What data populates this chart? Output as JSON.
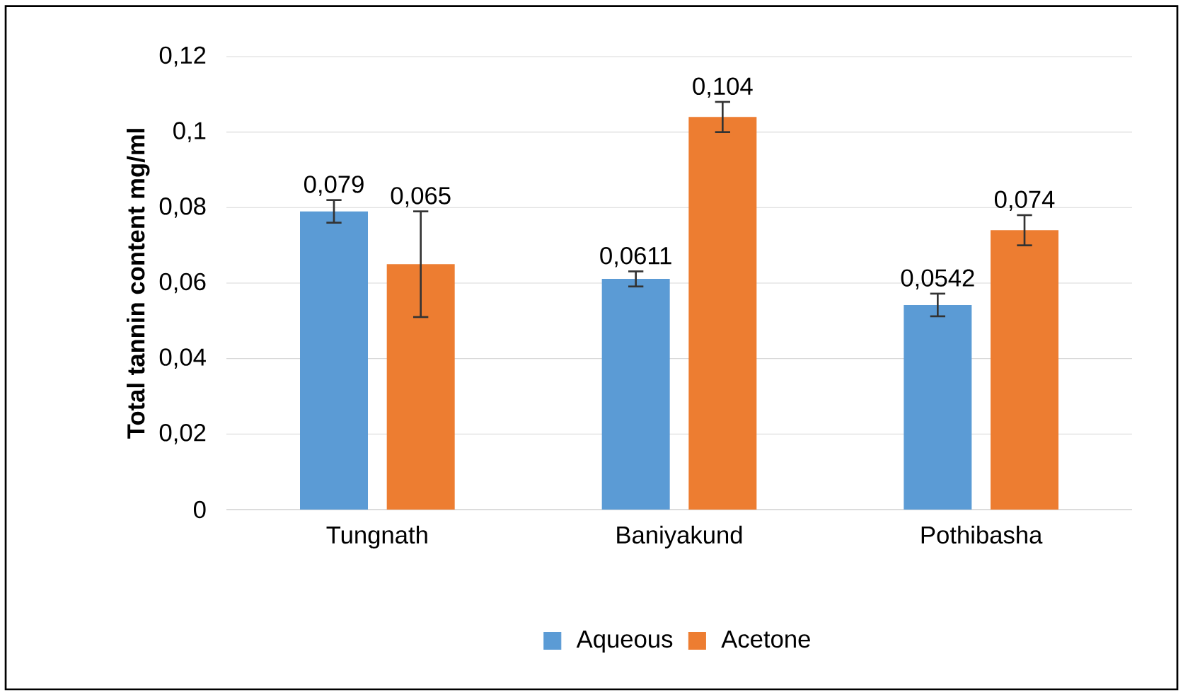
{
  "chart_data": {
    "type": "bar",
    "ylabel": "Total tannin content mg/ml",
    "categories": [
      "Tungnath",
      "Baniyakund",
      "Pothibasha"
    ],
    "series": [
      {
        "name": "Aqueous",
        "color": "#5b9bd5",
        "values": [
          0.079,
          0.0611,
          0.0542
        ],
        "errors": [
          0.003,
          0.002,
          0.003
        ],
        "value_labels": [
          "0,079",
          "0,0611",
          "0,0542"
        ]
      },
      {
        "name": "Acetone",
        "color": "#ed7d31",
        "values": [
          0.065,
          0.104,
          0.074
        ],
        "errors": [
          0.014,
          0.004,
          0.004
        ],
        "value_labels": [
          "0,065",
          "0,104",
          "0,074"
        ]
      }
    ],
    "ylim": [
      0,
      0.12
    ],
    "yticks": [
      {
        "value": 0,
        "label": "0"
      },
      {
        "value": 0.02,
        "label": "0,02"
      },
      {
        "value": 0.04,
        "label": "0,04"
      },
      {
        "value": 0.06,
        "label": "0,06"
      },
      {
        "value": 0.08,
        "label": "0,08"
      },
      {
        "value": 0.1,
        "label": "0,1"
      },
      {
        "value": 0.12,
        "label": "0,12"
      }
    ],
    "grid": "y",
    "legend": "bottom"
  }
}
